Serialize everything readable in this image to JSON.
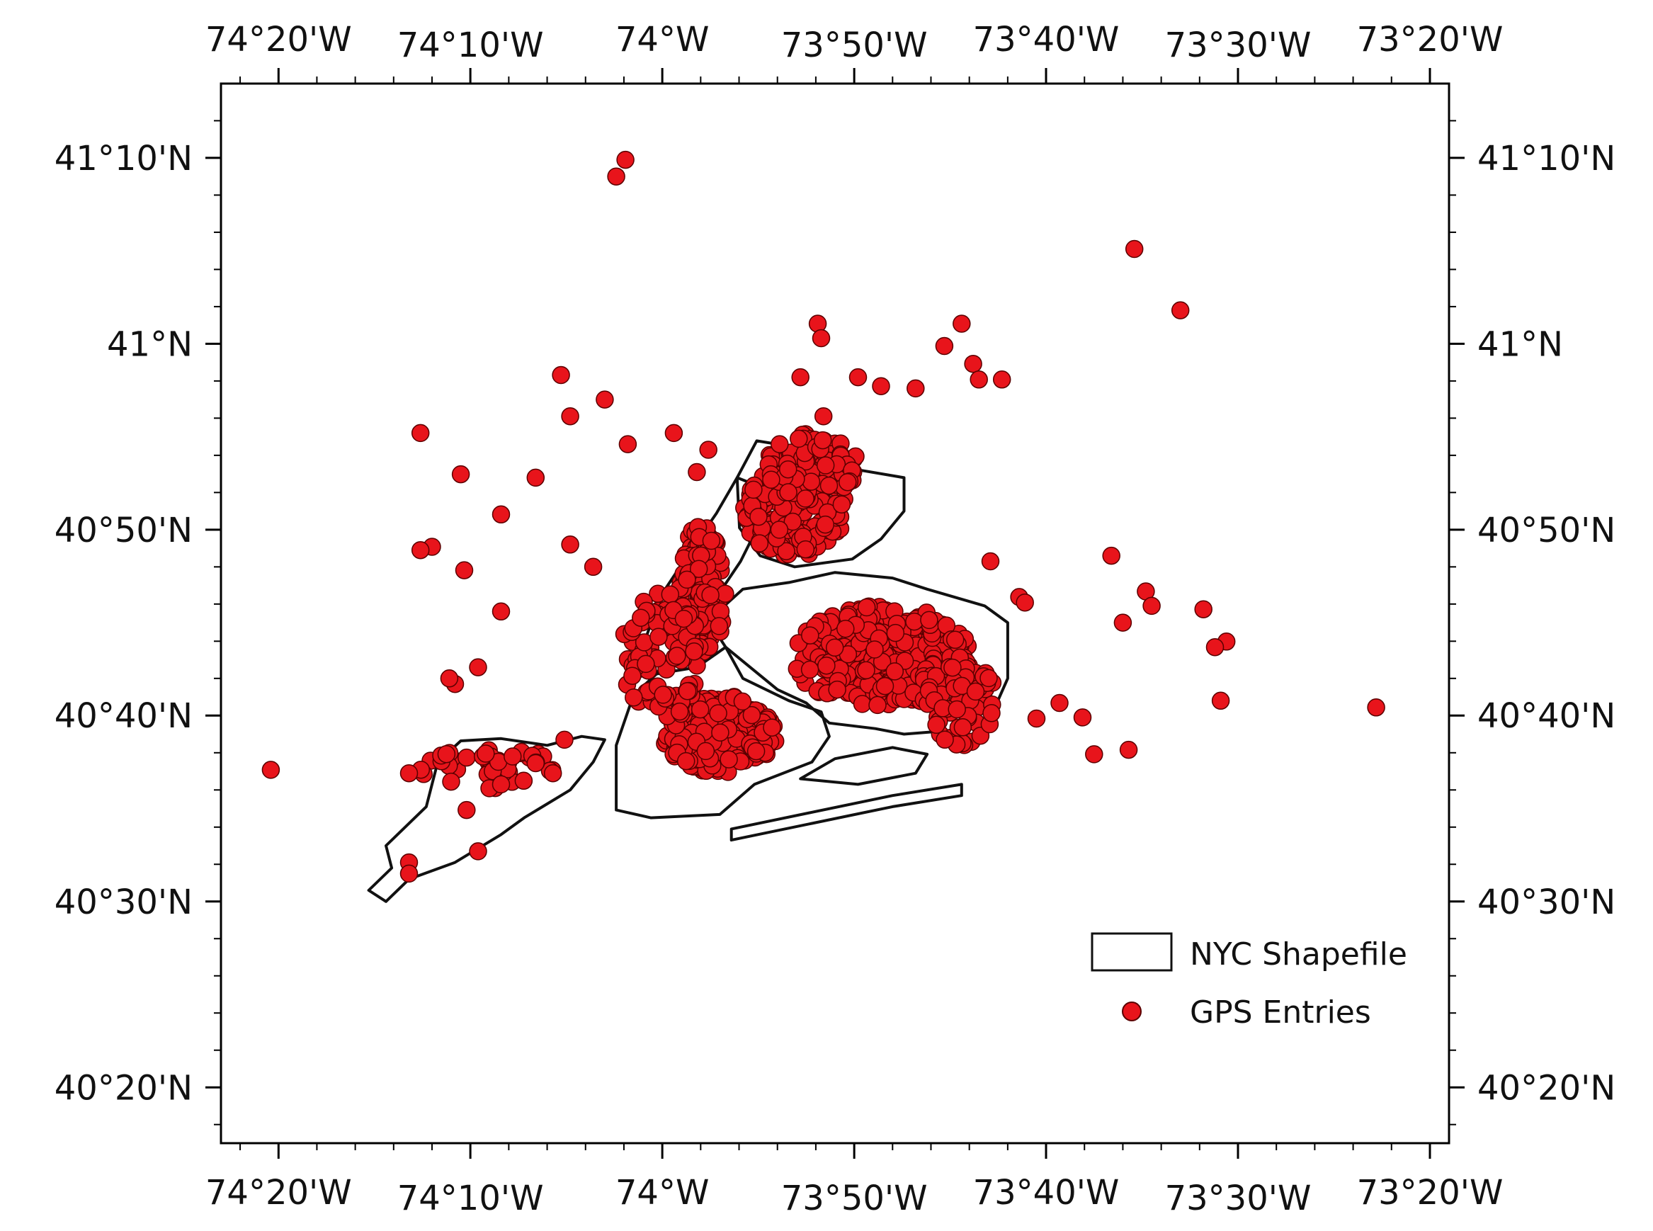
{
  "map": {
    "lon_range": [
      -74.3833,
      -73.3167
    ],
    "lat_range": [
      40.2833,
      41.2333
    ],
    "lon_ticks": [
      {
        "value": -74.3333,
        "label": "74°20'W"
      },
      {
        "value": -74.1667,
        "label": "74°10'W"
      },
      {
        "value": -74.0,
        "label": "74°W"
      },
      {
        "value": -73.8333,
        "label": "73°50'W"
      },
      {
        "value": -73.6667,
        "label": "73°40'W"
      },
      {
        "value": -73.5,
        "label": "73°30'W"
      },
      {
        "value": -73.3333,
        "label": "73°20'W"
      }
    ],
    "lat_ticks": [
      {
        "value": 41.1667,
        "label": "41°10'N"
      },
      {
        "value": 41.0,
        "label": "41°N"
      },
      {
        "value": 40.8333,
        "label": "40°50'N"
      },
      {
        "value": 40.6667,
        "label": "40°40'N"
      },
      {
        "value": 40.5,
        "label": "40°30'N"
      },
      {
        "value": 40.3333,
        "label": "40°20'N"
      }
    ],
    "colors": {
      "gps_fill": "#e8141b",
      "gps_stroke": "#5a0000",
      "shape_stroke": "#111111",
      "frame": "#000000"
    }
  },
  "legend": {
    "shapefile_label": "NYC Shapefile",
    "gps_label": "GPS Entries"
  },
  "nyc_shapefile": {
    "staten_island": [
      [
        -74.1,
        40.64
      ],
      [
        -74.07,
        40.648
      ],
      [
        -74.05,
        40.645
      ],
      [
        -74.06,
        40.625
      ],
      [
        -74.08,
        40.6
      ],
      [
        -74.12,
        40.575
      ],
      [
        -74.14,
        40.56
      ],
      [
        -74.18,
        40.535
      ],
      [
        -74.22,
        40.52
      ],
      [
        -74.24,
        40.5
      ],
      [
        -74.255,
        40.51
      ],
      [
        -74.235,
        40.53
      ],
      [
        -74.24,
        40.55
      ],
      [
        -74.205,
        40.585
      ],
      [
        -74.195,
        40.625
      ],
      [
        -74.175,
        40.644
      ],
      [
        -74.14,
        40.646
      ],
      [
        -74.1,
        40.64
      ]
    ],
    "bronx": [
      [
        -73.935,
        40.88
      ],
      [
        -73.918,
        40.913
      ],
      [
        -73.87,
        40.905
      ],
      [
        -73.83,
        40.887
      ],
      [
        -73.79,
        40.88
      ],
      [
        -73.79,
        40.85
      ],
      [
        -73.81,
        40.825
      ],
      [
        -73.835,
        40.807
      ],
      [
        -73.885,
        40.8
      ],
      [
        -73.915,
        40.81
      ],
      [
        -73.933,
        40.835
      ],
      [
        -73.935,
        40.88
      ]
    ],
    "manhattan": [
      [
        -73.935,
        40.88
      ],
      [
        -73.953,
        40.848
      ],
      [
        -73.975,
        40.815
      ],
      [
        -74.002,
        40.773
      ],
      [
        -74.018,
        40.725
      ],
      [
        -74.018,
        40.702
      ],
      [
        -73.998,
        40.708
      ],
      [
        -73.975,
        40.722
      ],
      [
        -73.958,
        40.765
      ],
      [
        -73.932,
        40.805
      ],
      [
        -73.915,
        40.84
      ],
      [
        -73.918,
        40.873
      ],
      [
        -73.935,
        40.88
      ]
    ],
    "brooklyn": [
      [
        -74.04,
        40.64
      ],
      [
        -74.025,
        40.685
      ],
      [
        -74.005,
        40.704
      ],
      [
        -73.97,
        40.71
      ],
      [
        -73.945,
        40.728
      ],
      [
        -73.93,
        40.7
      ],
      [
        -73.89,
        40.68
      ],
      [
        -73.862,
        40.67
      ],
      [
        -73.855,
        40.648
      ],
      [
        -73.87,
        40.625
      ],
      [
        -73.92,
        40.605
      ],
      [
        -73.95,
        40.578
      ],
      [
        -74.01,
        40.575
      ],
      [
        -74.04,
        40.582
      ],
      [
        -74.04,
        40.64
      ]
    ],
    "queens": [
      [
        -73.945,
        40.728
      ],
      [
        -73.96,
        40.752
      ],
      [
        -73.93,
        40.78
      ],
      [
        -73.89,
        40.786
      ],
      [
        -73.85,
        40.795
      ],
      [
        -73.8,
        40.79
      ],
      [
        -73.77,
        40.78
      ],
      [
        -73.72,
        40.765
      ],
      [
        -73.7,
        40.75
      ],
      [
        -73.7,
        40.7
      ],
      [
        -73.715,
        40.665
      ],
      [
        -73.73,
        40.655
      ],
      [
        -73.79,
        40.65
      ],
      [
        -73.815,
        40.655
      ],
      [
        -73.855,
        40.66
      ],
      [
        -73.875,
        40.678
      ],
      [
        -73.9,
        40.69
      ],
      [
        -73.945,
        40.728
      ]
    ],
    "rockaway": [
      [
        -73.94,
        40.555
      ],
      [
        -73.87,
        40.57
      ],
      [
        -73.8,
        40.585
      ],
      [
        -73.74,
        40.595
      ],
      [
        -73.74,
        40.605
      ],
      [
        -73.8,
        40.595
      ],
      [
        -73.87,
        40.58
      ],
      [
        -73.94,
        40.565
      ],
      [
        -73.94,
        40.555
      ]
    ],
    "jamaica_bay": [
      [
        -73.88,
        40.61
      ],
      [
        -73.85,
        40.628
      ],
      [
        -73.8,
        40.638
      ],
      [
        -73.77,
        40.632
      ],
      [
        -73.78,
        40.615
      ],
      [
        -73.83,
        40.605
      ],
      [
        -73.88,
        40.61
      ]
    ]
  },
  "gps_entries": {
    "outliers": [
      [
        -74.04,
        41.15
      ],
      [
        -74.032,
        41.165
      ],
      [
        -73.59,
        41.085
      ],
      [
        -73.55,
        41.03
      ],
      [
        -73.38,
        40.674
      ],
      [
        -73.865,
        41.018
      ],
      [
        -73.862,
        41.005
      ],
      [
        -73.74,
        41.018
      ],
      [
        -73.755,
        40.998
      ],
      [
        -73.73,
        40.982
      ],
      [
        -73.705,
        40.968
      ],
      [
        -73.725,
        40.968
      ],
      [
        -73.83,
        40.97
      ],
      [
        -73.81,
        40.962
      ],
      [
        -73.78,
        40.96
      ],
      [
        -74.21,
        40.92
      ],
      [
        -74.175,
        40.883
      ],
      [
        -74.2,
        40.818
      ],
      [
        -73.97,
        40.885
      ],
      [
        -74.34,
        40.618
      ],
      [
        -74.22,
        40.615
      ],
      [
        -74.22,
        40.535
      ],
      [
        -74.22,
        40.525
      ],
      [
        -74.16,
        40.545
      ],
      [
        -73.61,
        40.81
      ],
      [
        -73.6,
        40.75
      ],
      [
        -73.58,
        40.778
      ],
      [
        -73.575,
        40.765
      ],
      [
        -73.53,
        40.762
      ],
      [
        -73.51,
        40.733
      ],
      [
        -73.52,
        40.728
      ],
      [
        -73.515,
        40.68
      ],
      [
        -73.655,
        40.678
      ],
      [
        -73.635,
        40.665
      ],
      [
        -73.625,
        40.632
      ],
      [
        -73.595,
        40.636
      ],
      [
        -73.675,
        40.664
      ],
      [
        -73.69,
        40.773
      ],
      [
        -73.685,
        40.768
      ],
      [
        -73.715,
        40.805
      ],
      [
        -74.06,
        40.8
      ],
      [
        -74.08,
        40.82
      ],
      [
        -74.11,
        40.88
      ],
      [
        -74.14,
        40.847
      ],
      [
        -74.172,
        40.797
      ],
      [
        -74.14,
        40.76
      ],
      [
        -74.16,
        40.71
      ],
      [
        -74.18,
        40.695
      ],
      [
        -74.185,
        40.7
      ],
      [
        -74.21,
        40.815
      ],
      [
        -74.14,
        40.605
      ],
      [
        -74.17,
        40.582
      ],
      [
        -74.085,
        40.645
      ],
      [
        -74.095,
        40.615
      ],
      [
        -74.11,
        40.624
      ],
      [
        -74.13,
        40.63
      ],
      [
        -74.05,
        40.95
      ],
      [
        -74.08,
        40.935
      ],
      [
        -74.03,
        40.91
      ],
      [
        -73.99,
        40.92
      ],
      [
        -73.96,
        40.905
      ],
      [
        -73.86,
        40.935
      ],
      [
        -73.88,
        40.97
      ],
      [
        -74.088,
        40.972
      ]
    ],
    "clusters": [
      {
        "center": [
          -73.885,
          40.85
        ],
        "spread": [
          0.045,
          0.04
        ],
        "count": 180
      },
      {
        "center": [
          -73.965,
          40.78
        ],
        "spread": [
          0.02,
          0.06
        ],
        "count": 120
      },
      {
        "center": [
          -73.95,
          40.65
        ],
        "spread": [
          0.05,
          0.035
        ],
        "count": 220
      },
      {
        "center": [
          -73.81,
          40.72
        ],
        "spread": [
          0.08,
          0.045
        ],
        "count": 300
      },
      {
        "center": [
          -73.87,
          40.89
        ],
        "spread": [
          0.04,
          0.03
        ],
        "count": 90
      },
      {
        "center": [
          -74.0,
          40.72
        ],
        "spread": [
          0.035,
          0.06
        ],
        "count": 90
      },
      {
        "center": [
          -74.15,
          40.62
        ],
        "spread": [
          0.06,
          0.02
        ],
        "count": 40
      },
      {
        "center": [
          -73.74,
          40.68
        ],
        "spread": [
          0.03,
          0.04
        ],
        "count": 60
      }
    ]
  }
}
